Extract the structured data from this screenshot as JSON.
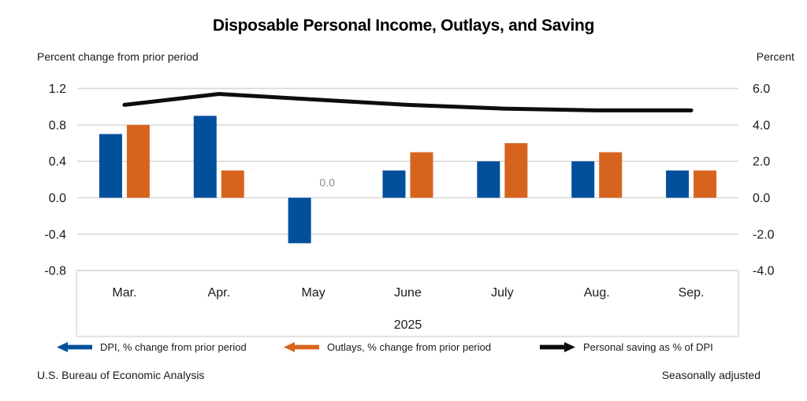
{
  "title": "Disposable Personal Income, Outlays, and Saving",
  "axis_captions": {
    "left": "Percent change from prior period",
    "right": "Percent"
  },
  "footer": {
    "left": "U.S. Bureau of Economic Analysis",
    "right": "Seasonally adjusted"
  },
  "legend": [
    {
      "label": "DPI, % change from prior period",
      "color": "#02509C",
      "direction": "left",
      "icon": "left-arrow-icon"
    },
    {
      "label": "Outlays, % change from prior period",
      "color": "#D7641E",
      "direction": "left",
      "icon": "left-arrow-icon"
    },
    {
      "label": "Personal saving as % of DPI",
      "color": "#0D0D0D",
      "direction": "right",
      "icon": "right-arrow-icon"
    }
  ],
  "chart_data": {
    "type": "bar",
    "subtype": "grouped bars with overlaid line",
    "categories": [
      "Mar.",
      "Apr.",
      "May",
      "June",
      "July",
      "Aug.",
      "Sep."
    ],
    "year_label": "2025",
    "series": [
      {
        "name": "DPI, % change from prior period",
        "render": "bar",
        "axis": "left",
        "color": "#02509C",
        "values": [
          0.7,
          0.9,
          -0.5,
          0.3,
          0.4,
          0.4,
          0.3
        ]
      },
      {
        "name": "Outlays, % change from prior period",
        "render": "bar",
        "axis": "left",
        "color": "#D7641E",
        "values": [
          0.8,
          0.3,
          0.0,
          0.5,
          0.6,
          0.5,
          0.3
        ]
      },
      {
        "name": "Personal saving as % of DPI",
        "render": "line",
        "axis": "right",
        "color": "#0D0D0D",
        "values": [
          5.1,
          5.7,
          5.4,
          5.1,
          4.9,
          4.8,
          4.8
        ]
      }
    ],
    "annotations": [
      {
        "text": "0.0",
        "series": "Outlays, % change from prior period",
        "category": "May",
        "color": "#8C8C8C"
      }
    ],
    "left_axis": {
      "label": "Percent change from prior period",
      "ticks": [
        1.2,
        0.8,
        0.4,
        0.0,
        -0.4,
        -0.8
      ],
      "range": [
        -0.8,
        1.2
      ]
    },
    "right_axis": {
      "label": "Percent",
      "ticks": [
        6.0,
        4.0,
        2.0,
        0.0,
        -2.0,
        -4.0
      ],
      "range": [
        -4.0,
        6.0
      ]
    },
    "grid": true,
    "gridline_color": "#D9D9D9",
    "legend_position": "bottom"
  }
}
